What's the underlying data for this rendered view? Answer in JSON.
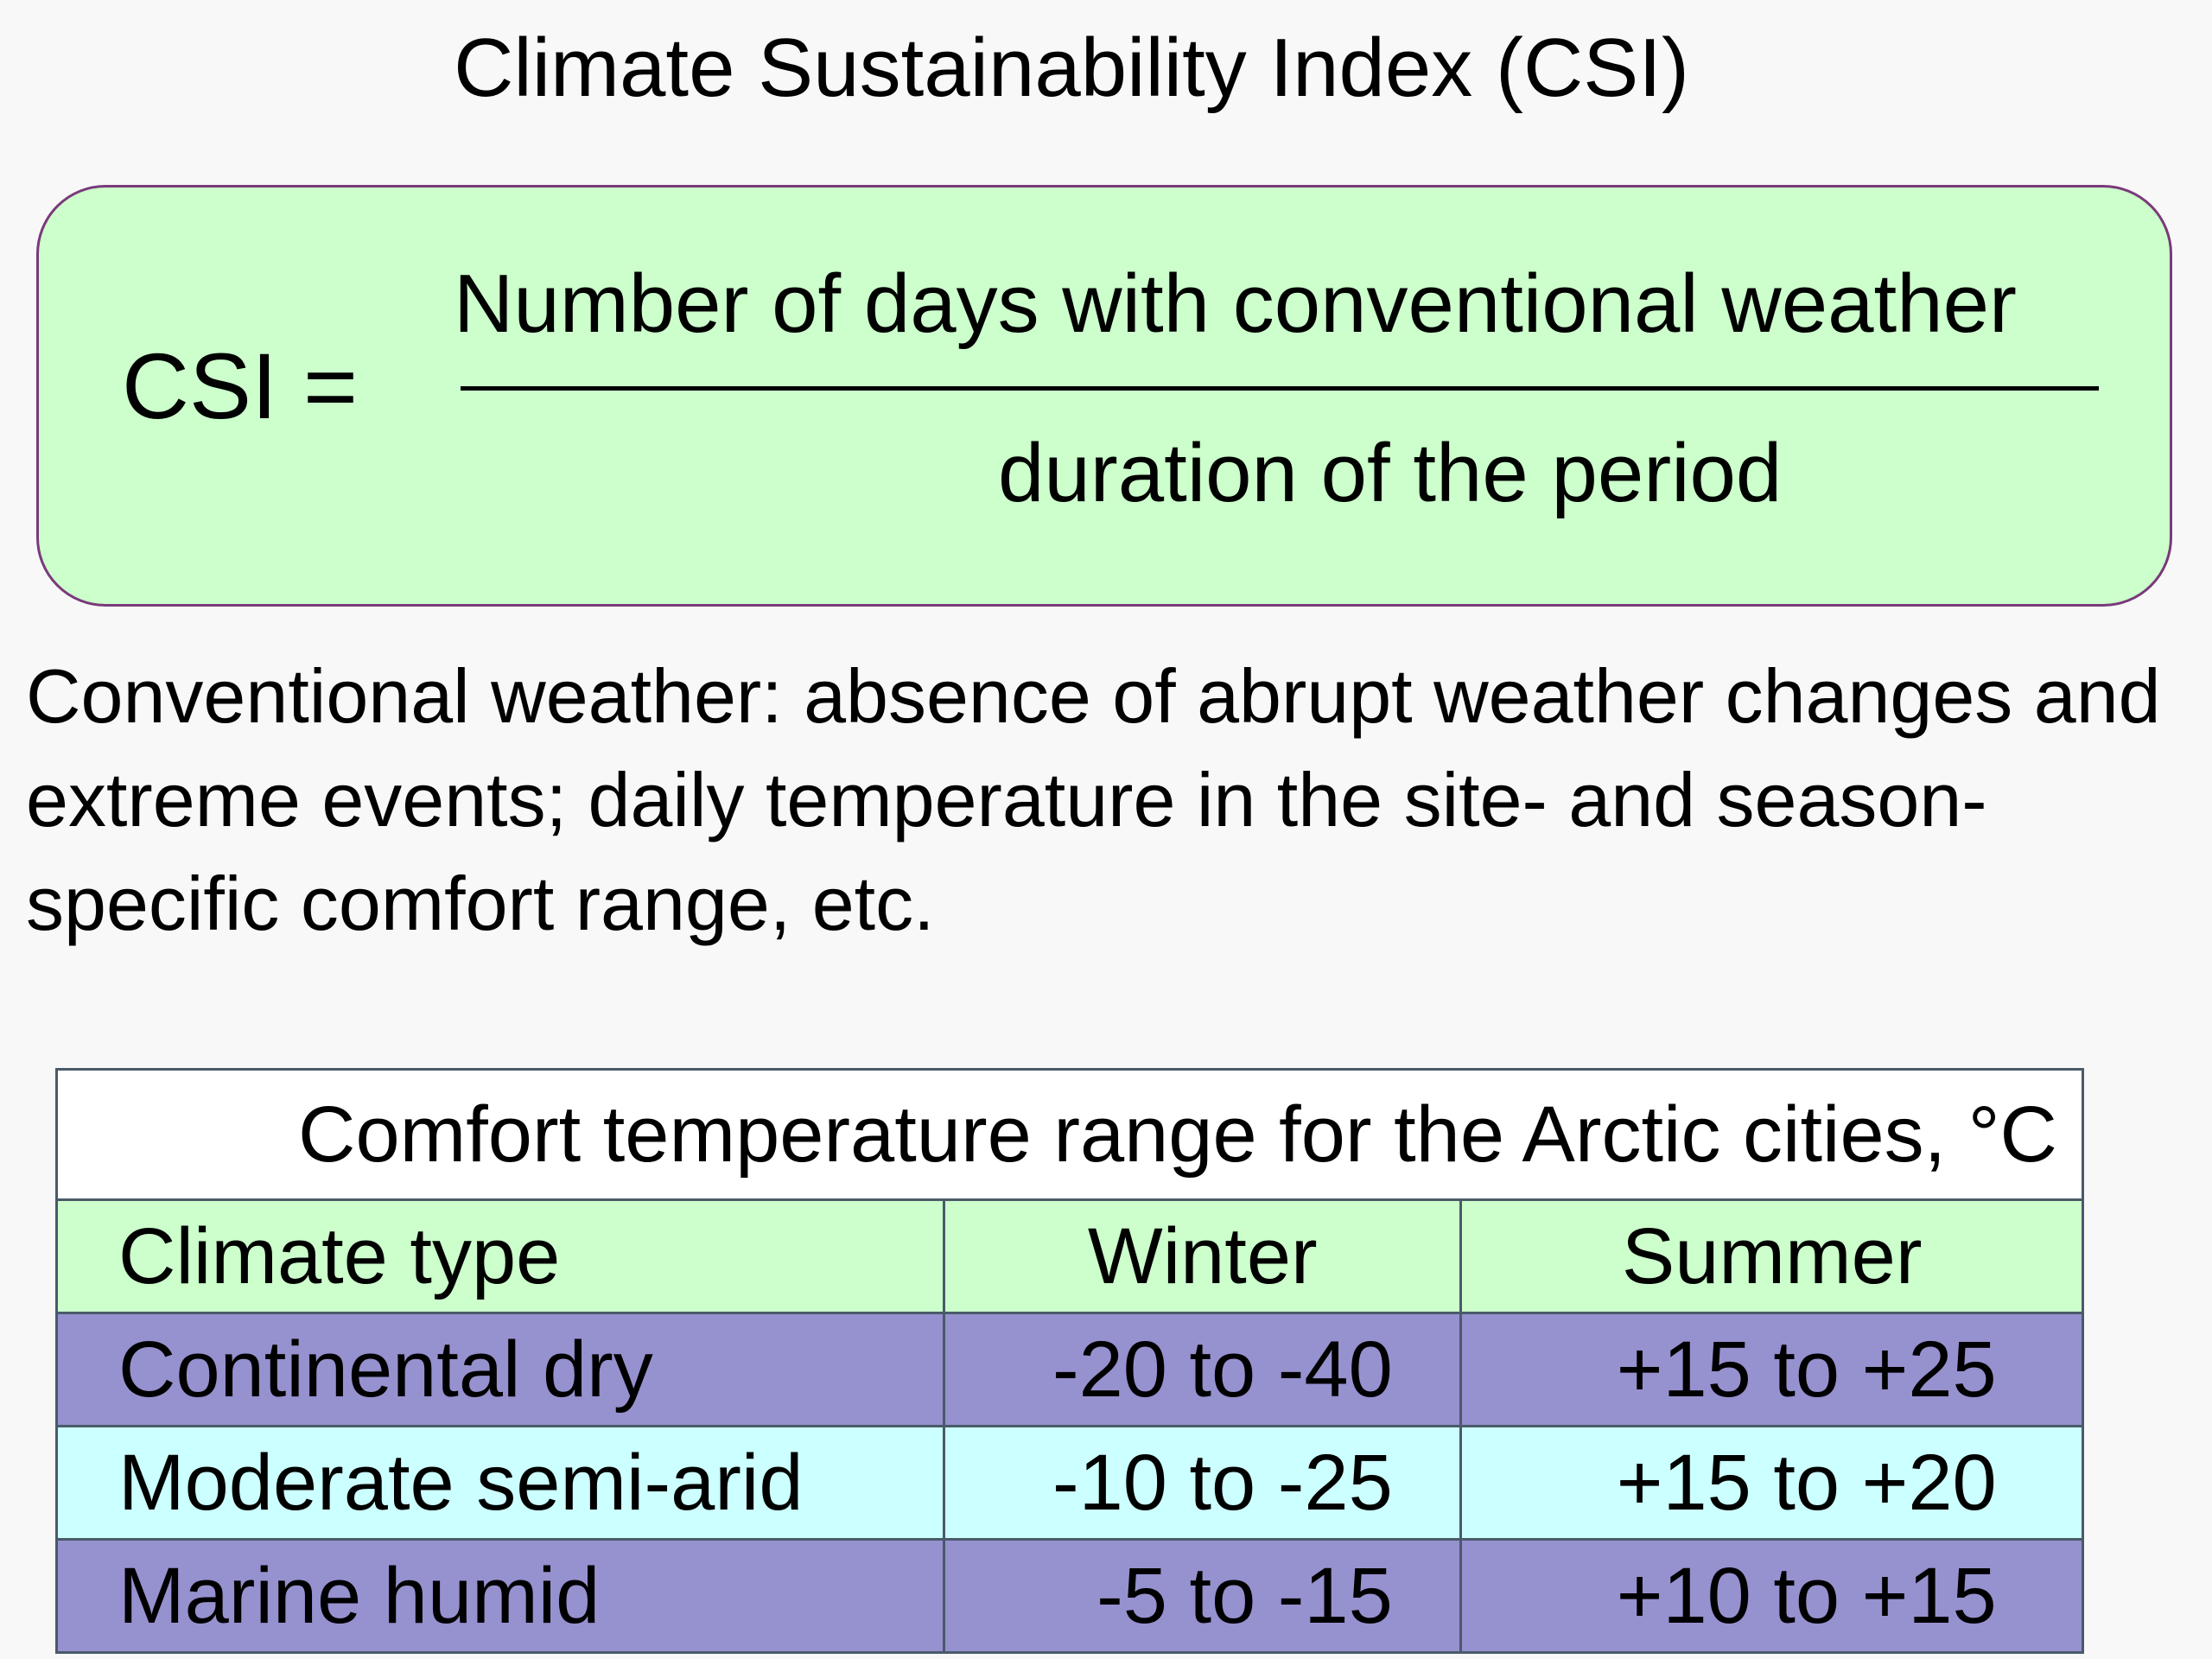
{
  "title": "Climate Sustainability Index (CSI)",
  "formula": {
    "lhs": "CSI =",
    "numerator": "Number of days with conventional weather",
    "denominator": "duration of the period"
  },
  "definition": "Conventional weather: absence of abrupt weather changes and extreme events;  daily temperature in the site- and season-specific comfort range, etc.",
  "table": {
    "caption": "Comfort temperature range for the Arctic cities, °C",
    "headers": [
      "Climate type",
      "Winter",
      "Summer"
    ],
    "rows": [
      {
        "type": "Continental dry",
        "winter": "-20 to -40",
        "summer": "+15 to +25"
      },
      {
        "type": "Moderate semi-arid",
        "winter": "-10 to -25",
        "summer": "+15 to +20"
      },
      {
        "type": "Marine humid",
        "winter": "-5 to -15",
        "summer": "+10 to +15"
      }
    ]
  }
}
